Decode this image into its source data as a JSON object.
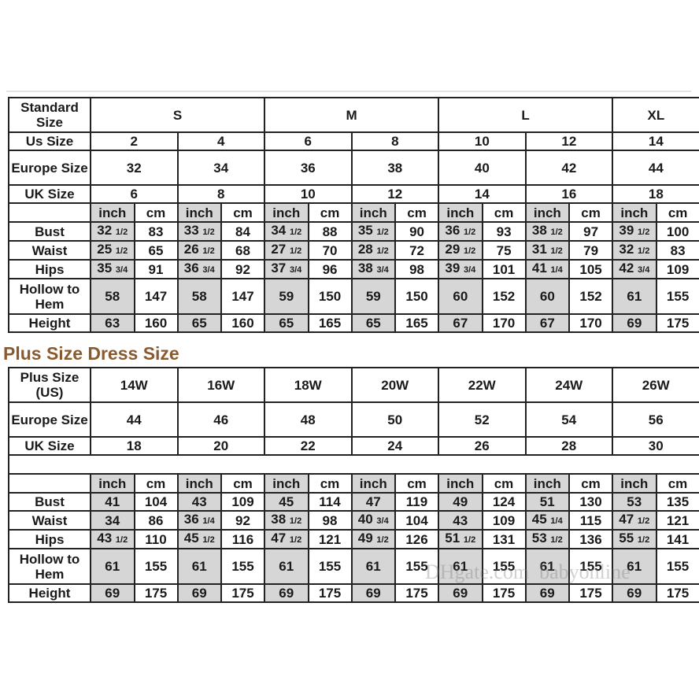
{
  "standard_table": {
    "header_label": "Standard Size",
    "groups": [
      {
        "label": "S",
        "span": 2
      },
      {
        "label": "M",
        "span": 2
      },
      {
        "label": "L",
        "span": 2
      },
      {
        "label": "XL",
        "span": 1
      }
    ],
    "size_rows": [
      {
        "label": "Us Size",
        "values": [
          "2",
          "4",
          "6",
          "8",
          "10",
          "12",
          "14"
        ],
        "tall": false
      },
      {
        "label": "Europe Size",
        "values": [
          "32",
          "34",
          "36",
          "38",
          "40",
          "42",
          "44"
        ],
        "tall": true
      },
      {
        "label": "UK Size",
        "values": [
          "6",
          "8",
          "10",
          "12",
          "14",
          "16",
          "18"
        ],
        "tall": false
      }
    ],
    "unit_labels": [
      "inch",
      "cm"
    ],
    "measure_rows": [
      {
        "label": "Bust",
        "values": [
          "32 1/2",
          "83",
          "33 1/2",
          "84",
          "34 1/2",
          "88",
          "35 1/2",
          "90",
          "36 1/2",
          "93",
          "38 1/2",
          "97",
          "39 1/2",
          "100"
        ]
      },
      {
        "label": "Waist",
        "values": [
          "25 1/2",
          "65",
          "26 1/2",
          "68",
          "27 1/2",
          "70",
          "28 1/2",
          "72",
          "29 1/2",
          "75",
          "31 1/2",
          "79",
          "32 1/2",
          "83"
        ]
      },
      {
        "label": "Hips",
        "values": [
          "35 3/4",
          "91",
          "36 3/4",
          "92",
          "37 3/4",
          "96",
          "38 3/4",
          "98",
          "39 3/4",
          "101",
          "41 1/4",
          "105",
          "42 3/4",
          "109"
        ]
      },
      {
        "label": "Hollow to Hem",
        "values": [
          "58",
          "147",
          "58",
          "147",
          "59",
          "150",
          "59",
          "150",
          "60",
          "152",
          "60",
          "152",
          "61",
          "155"
        ],
        "tall": true
      },
      {
        "label": "Height",
        "values": [
          "63",
          "160",
          "65",
          "160",
          "65",
          "165",
          "65",
          "165",
          "67",
          "170",
          "67",
          "170",
          "69",
          "175"
        ]
      }
    ]
  },
  "plus_title": "Plus Size Dress Size",
  "plus_table": {
    "size_rows": [
      {
        "label": "Plus Size (US)",
        "values": [
          "14W",
          "16W",
          "18W",
          "20W",
          "22W",
          "24W",
          "26W"
        ],
        "tall": true
      },
      {
        "label": "Europe Size",
        "values": [
          "44",
          "46",
          "48",
          "50",
          "52",
          "54",
          "56"
        ],
        "tall": true
      },
      {
        "label": "UK Size",
        "values": [
          "18",
          "20",
          "22",
          "24",
          "26",
          "28",
          "30"
        ],
        "tall": false
      }
    ],
    "unit_labels": [
      "inch",
      "cm"
    ],
    "measure_rows": [
      {
        "label": "Bust",
        "values": [
          "41",
          "104",
          "43",
          "109",
          "45",
          "114",
          "47",
          "119",
          "49",
          "124",
          "51",
          "130",
          "53",
          "135"
        ]
      },
      {
        "label": "Waist",
        "values": [
          "34",
          "86",
          "36 1/4",
          "92",
          "38 1/2",
          "98",
          "40 3/4",
          "104",
          "43",
          "109",
          "45 1/4",
          "115",
          "47 1/2",
          "121"
        ]
      },
      {
        "label": "Hips",
        "values": [
          "43 1/2",
          "110",
          "45 1/2",
          "116",
          "47 1/2",
          "121",
          "49 1/2",
          "126",
          "51 1/2",
          "131",
          "53 1/2",
          "136",
          "55 1/2",
          "141"
        ]
      },
      {
        "label": "Hollow to Hem",
        "values": [
          "61",
          "155",
          "61",
          "155",
          "61",
          "155",
          "61",
          "155",
          "61",
          "155",
          "61",
          "155",
          "61",
          "155"
        ],
        "tall": true
      },
      {
        "label": "Height",
        "values": [
          "69",
          "175",
          "69",
          "175",
          "69",
          "175",
          "69",
          "175",
          "69",
          "175",
          "69",
          "175",
          "69",
          "175"
        ]
      }
    ]
  },
  "watermark": "DHgate.com  babyonline",
  "colors": {
    "title": "#8a5a2e",
    "inch_shade": "#d6d6d6",
    "border": "#222222"
  }
}
